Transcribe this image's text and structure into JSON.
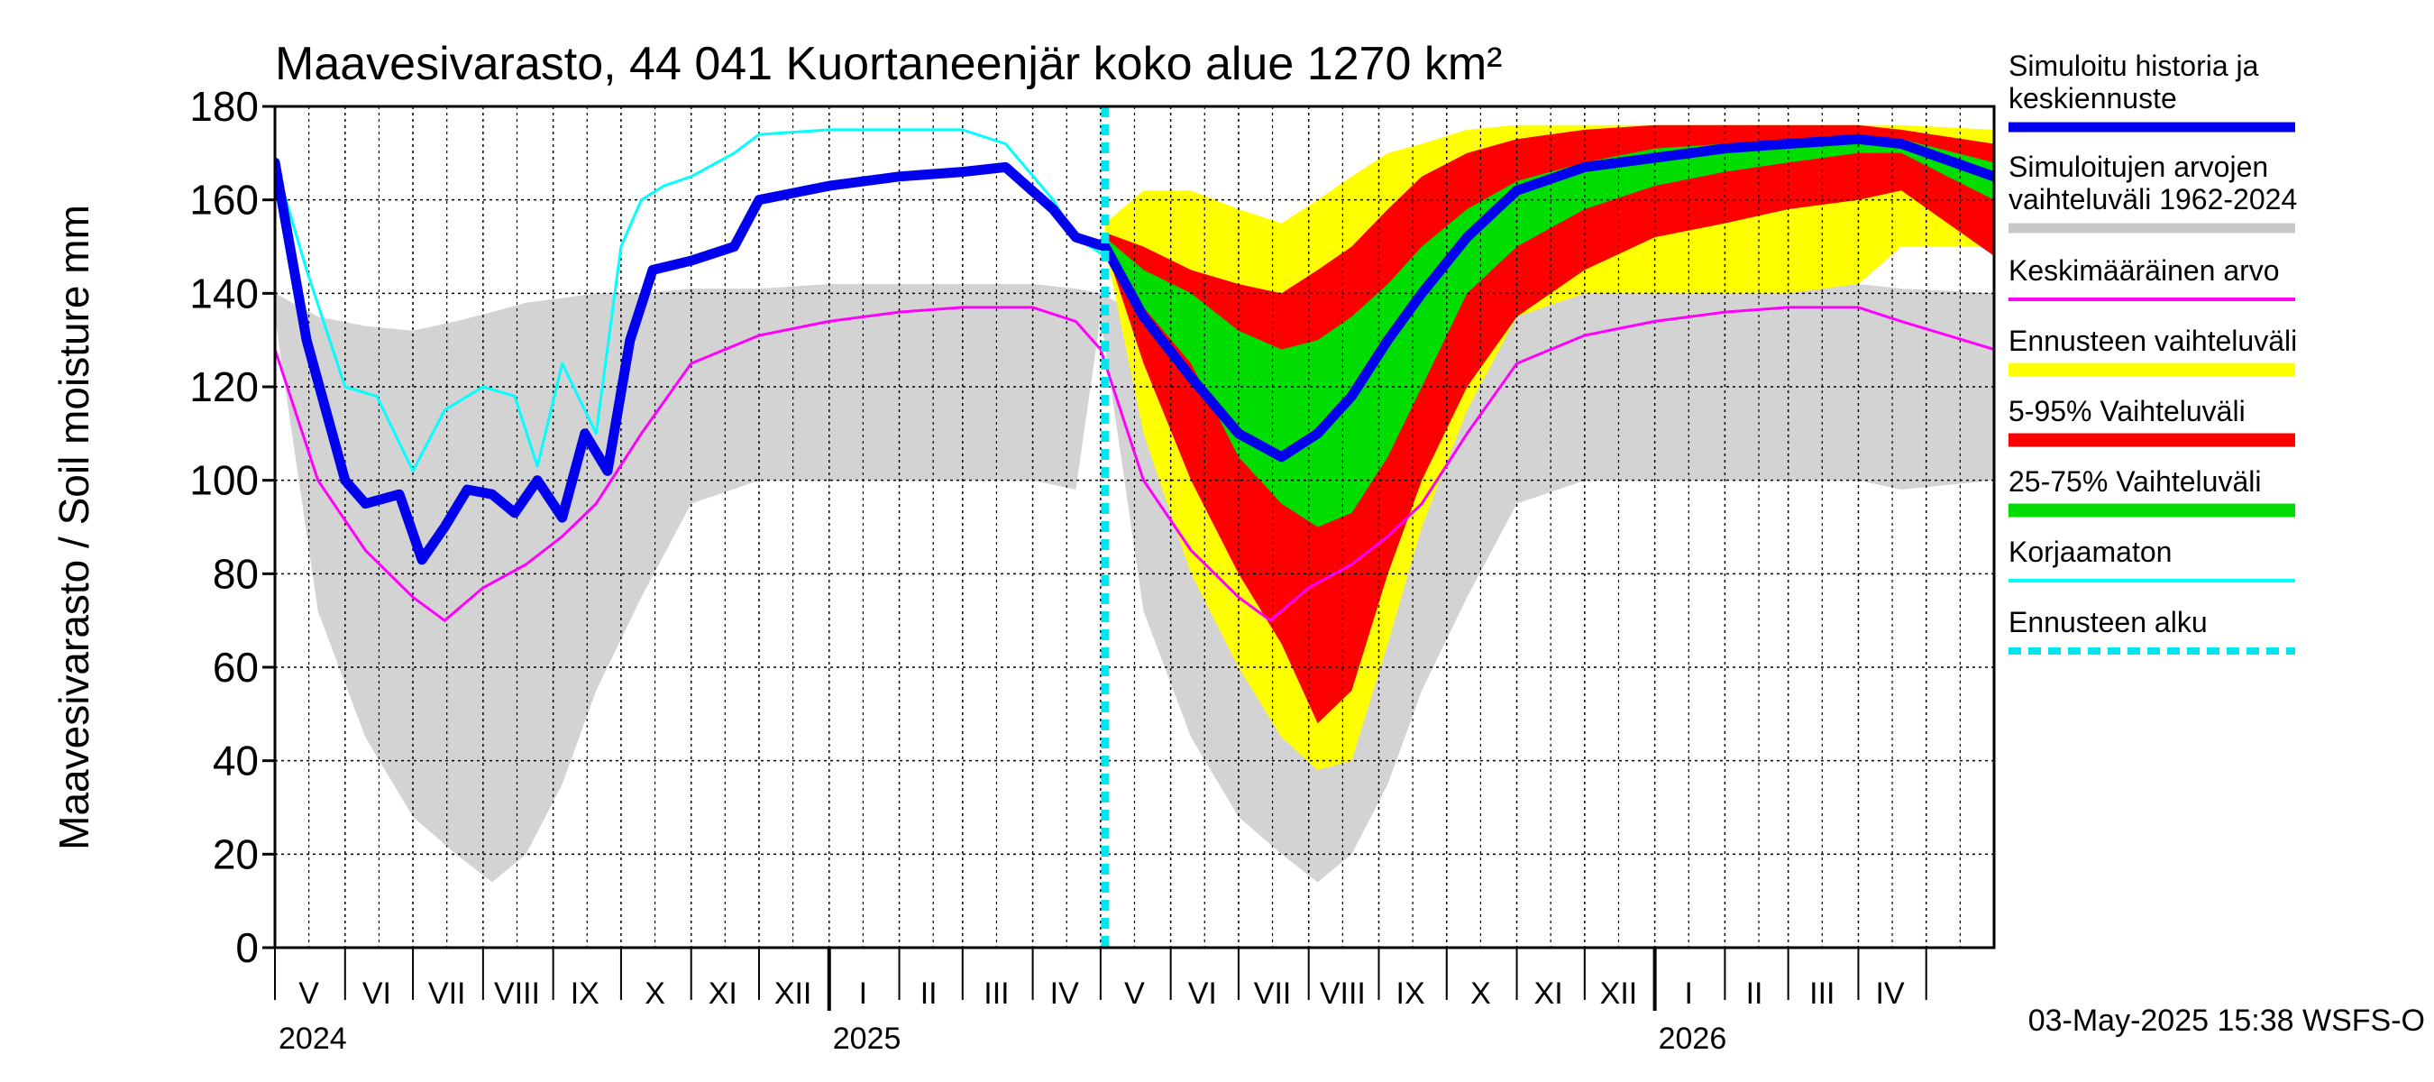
{
  "chart_data": {
    "type": "area",
    "title": "Maavesivarasto, 44 041 Kuortaneenjär koko alue 1270 km²",
    "ylabel": "Maavesivarasto / Soil moisture   mm",
    "ylim": [
      0,
      180
    ],
    "yticks": [
      0,
      20,
      40,
      60,
      80,
      100,
      120,
      140,
      160,
      180
    ],
    "grid": true,
    "legend_placement": "right",
    "xlim": [
      "2024-05-01",
      "2026-05-31"
    ],
    "forecast_start": "2025-05-03",
    "timestamp": "03-May-2025 15:38 WSFS-O",
    "month_labels": [
      {
        "date": "2024-05-16",
        "label": "V"
      },
      {
        "date": "2024-06-15",
        "label": "VI"
      },
      {
        "date": "2024-07-16",
        "label": "VII"
      },
      {
        "date": "2024-08-16",
        "label": "VIII"
      },
      {
        "date": "2024-09-15",
        "label": "IX"
      },
      {
        "date": "2024-10-16",
        "label": "X"
      },
      {
        "date": "2024-11-15",
        "label": "XI"
      },
      {
        "date": "2024-12-16",
        "label": "XII"
      },
      {
        "date": "2025-01-16",
        "label": "I"
      },
      {
        "date": "2025-02-14",
        "label": "II"
      },
      {
        "date": "2025-03-16",
        "label": "III"
      },
      {
        "date": "2025-04-15",
        "label": "IV"
      },
      {
        "date": "2025-05-16",
        "label": "V"
      },
      {
        "date": "2025-06-15",
        "label": "VI"
      },
      {
        "date": "2025-07-16",
        "label": "VII"
      },
      {
        "date": "2025-08-16",
        "label": "VIII"
      },
      {
        "date": "2025-09-15",
        "label": "IX"
      },
      {
        "date": "2025-10-16",
        "label": "X"
      },
      {
        "date": "2025-11-15",
        "label": "XI"
      },
      {
        "date": "2025-12-16",
        "label": "XII"
      },
      {
        "date": "2026-01-16",
        "label": "I"
      },
      {
        "date": "2026-02-14",
        "label": "II"
      },
      {
        "date": "2026-03-16",
        "label": "III"
      },
      {
        "date": "2026-04-15",
        "label": "IV"
      }
    ],
    "year_labels": [
      {
        "date": "2024-05-01",
        "label": "2024"
      },
      {
        "date": "2025-01-01",
        "label": "2025"
      },
      {
        "date": "2026-01-01",
        "label": "2026"
      }
    ],
    "legend": [
      {
        "lines": [
          "Simuloitu historia ja",
          "keskiennuste"
        ],
        "color": "#0000ee"
      },
      {
        "lines": [
          "Simuloitujen arvojen",
          "vaihteluväli 1962-2024"
        ],
        "color": "#c8c8c8"
      },
      {
        "lines": [
          "Keskimääräinen arvo"
        ],
        "color": "#ff00ff"
      },
      {
        "lines": [
          "Ennusteen vaihteluväli"
        ],
        "color": "#ffff00"
      },
      {
        "lines": [
          "5-95% Vaihteluväli"
        ],
        "color": "#ff0000"
      },
      {
        "lines": [
          "25-75% Vaihteluväli"
        ],
        "color": "#00dd00"
      },
      {
        "lines": [
          "Korjaamaton"
        ],
        "color": "#00ffff"
      },
      {
        "lines": [
          "Ennusteen alku"
        ],
        "color": "#00e5ee"
      }
    ],
    "series": [
      {
        "name": "Simuloitujen arvojen vaihteluväli 1962-2024",
        "kind": "band",
        "color": "#d3d3d3",
        "x": [
          "2024-05-01",
          "2024-05-20",
          "2024-06-10",
          "2024-07-01",
          "2024-07-20",
          "2024-08-05",
          "2024-08-20",
          "2024-09-05",
          "2024-09-20",
          "2024-10-10",
          "2024-11-01",
          "2024-12-01",
          "2025-01-01",
          "2025-02-01",
          "2025-03-01",
          "2025-04-01",
          "2025-04-20",
          "2025-05-01",
          "2025-05-20",
          "2025-06-10",
          "2025-07-01",
          "2025-07-20",
          "2025-08-05",
          "2025-08-20",
          "2025-09-05",
          "2025-09-20",
          "2025-10-10",
          "2025-11-01",
          "2025-12-01",
          "2026-01-01",
          "2026-02-01",
          "2026-03-01",
          "2026-04-01",
          "2026-04-20",
          "2026-05-31"
        ],
        "low": [
          135,
          72,
          45,
          28,
          20,
          14,
          20,
          35,
          55,
          75,
          95,
          100,
          100,
          100,
          100,
          100,
          98,
          135,
          72,
          45,
          28,
          20,
          14,
          20,
          35,
          55,
          75,
          95,
          100,
          100,
          100,
          100,
          100,
          98,
          100
        ],
        "high": [
          140,
          135,
          133,
          132,
          134,
          136,
          138,
          139,
          140,
          140,
          141,
          141,
          142,
          142,
          142,
          142,
          141,
          140,
          135,
          133,
          132,
          134,
          136,
          138,
          139,
          140,
          140,
          141,
          141,
          142,
          142,
          142,
          142,
          141,
          140
        ]
      },
      {
        "name": "Ennusteen vaihteluväli",
        "kind": "band",
        "color": "#ffff00",
        "x": [
          "2025-05-03",
          "2025-05-20",
          "2025-06-10",
          "2025-07-01",
          "2025-07-20",
          "2025-08-05",
          "2025-08-20",
          "2025-09-05",
          "2025-09-20",
          "2025-10-10",
          "2025-11-01",
          "2025-12-01",
          "2026-01-01",
          "2026-02-01",
          "2026-03-01",
          "2026-04-01",
          "2026-04-20",
          "2026-05-31"
        ],
        "low": [
          150,
          110,
          80,
          60,
          45,
          38,
          40,
          65,
          90,
          115,
          135,
          140,
          140,
          140,
          140,
          142,
          150,
          150
        ],
        "high": [
          155,
          162,
          162,
          158,
          155,
          160,
          165,
          170,
          172,
          175,
          176,
          176,
          176,
          176,
          176,
          176,
          176,
          175
        ]
      },
      {
        "name": "5-95% Vaihteluväli",
        "kind": "band",
        "color": "#ff0000",
        "x": [
          "2025-05-03",
          "2025-05-20",
          "2025-06-10",
          "2025-07-01",
          "2025-07-20",
          "2025-08-05",
          "2025-08-20",
          "2025-09-05",
          "2025-09-20",
          "2025-10-10",
          "2025-11-01",
          "2025-12-01",
          "2026-01-01",
          "2026-02-01",
          "2026-03-01",
          "2026-04-01",
          "2026-04-20",
          "2026-05-31"
        ],
        "low": [
          150,
          125,
          100,
          80,
          65,
          48,
          55,
          80,
          100,
          120,
          135,
          145,
          152,
          155,
          158,
          160,
          162,
          148
        ],
        "high": [
          153,
          150,
          145,
          142,
          140,
          145,
          150,
          158,
          165,
          170,
          173,
          175,
          176,
          176,
          176,
          176,
          175,
          172
        ]
      },
      {
        "name": "25-75% Vaihteluväli",
        "kind": "band",
        "color": "#00dd00",
        "x": [
          "2025-05-03",
          "2025-05-20",
          "2025-06-10",
          "2025-07-01",
          "2025-07-20",
          "2025-08-05",
          "2025-08-20",
          "2025-09-05",
          "2025-09-20",
          "2025-10-10",
          "2025-11-01",
          "2025-12-01",
          "2026-01-01",
          "2026-02-01",
          "2026-03-01",
          "2026-04-01",
          "2026-04-20",
          "2026-05-31"
        ],
        "low": [
          150,
          137,
          125,
          105,
          95,
          90,
          93,
          105,
          120,
          140,
          150,
          158,
          163,
          166,
          168,
          170,
          170,
          160
        ],
        "high": [
          152,
          145,
          140,
          132,
          128,
          130,
          135,
          142,
          150,
          158,
          164,
          168,
          171,
          172,
          173,
          174,
          173,
          168
        ]
      },
      {
        "name": "Keskimääräinen arvo",
        "kind": "line",
        "color": "#ff00ff",
        "width": 3,
        "x": [
          "2024-05-01",
          "2024-05-20",
          "2024-06-10",
          "2024-07-01",
          "2024-07-15",
          "2024-08-01",
          "2024-08-20",
          "2024-09-05",
          "2024-09-20",
          "2024-10-10",
          "2024-11-01",
          "2024-12-01",
          "2025-01-01",
          "2025-02-01",
          "2025-03-01",
          "2025-04-01",
          "2025-04-20",
          "2025-05-01",
          "2025-05-20",
          "2025-06-10",
          "2025-07-01",
          "2025-07-15",
          "2025-08-01",
          "2025-08-20",
          "2025-09-05",
          "2025-09-20",
          "2025-10-10",
          "2025-11-01",
          "2025-12-01",
          "2026-01-01",
          "2026-02-01",
          "2026-03-01",
          "2026-04-01",
          "2026-04-20",
          "2026-05-31"
        ],
        "values": [
          128,
          100,
          85,
          75,
          70,
          77,
          82,
          88,
          95,
          110,
          125,
          131,
          134,
          136,
          137,
          137,
          134,
          128,
          100,
          85,
          75,
          70,
          77,
          82,
          88,
          95,
          110,
          125,
          131,
          134,
          136,
          137,
          137,
          134,
          128
        ]
      },
      {
        "name": "Korjaamaton",
        "kind": "line",
        "color": "#00ffff",
        "width": 3,
        "x": [
          "2024-05-01",
          "2024-05-15",
          "2024-06-01",
          "2024-06-15",
          "2024-07-01",
          "2024-07-15",
          "2024-08-01",
          "2024-08-15",
          "2024-08-25",
          "2024-09-05",
          "2024-09-20",
          "2024-10-01",
          "2024-10-10",
          "2024-10-20",
          "2024-11-01",
          "2024-11-20",
          "2024-12-01",
          "2025-01-01",
          "2025-02-01",
          "2025-03-01",
          "2025-03-20",
          "2025-04-10",
          "2025-04-20",
          "2025-05-03"
        ],
        "values": [
          168,
          145,
          120,
          118,
          102,
          115,
          120,
          118,
          103,
          125,
          110,
          150,
          160,
          163,
          165,
          170,
          174,
          175,
          175,
          175,
          172,
          160,
          152,
          148
        ]
      },
      {
        "name": "Simuloitu historia ja keskiennuste",
        "kind": "line",
        "color": "#0000ee",
        "width": 11,
        "x": [
          "2024-05-01",
          "2024-05-15",
          "2024-06-01",
          "2024-06-10",
          "2024-06-25",
          "2024-07-05",
          "2024-07-15",
          "2024-07-25",
          "2024-08-05",
          "2024-08-15",
          "2024-08-25",
          "2024-09-05",
          "2024-09-15",
          "2024-09-25",
          "2024-10-05",
          "2024-10-15",
          "2024-11-01",
          "2024-11-20",
          "2024-12-01",
          "2025-01-01",
          "2025-02-01",
          "2025-03-01",
          "2025-03-20",
          "2025-04-10",
          "2025-04-20",
          "2025-05-03",
          "2025-05-20",
          "2025-06-10",
          "2025-07-01",
          "2025-07-20",
          "2025-08-05",
          "2025-08-20",
          "2025-09-05",
          "2025-09-20",
          "2025-10-10",
          "2025-11-01",
          "2025-12-01",
          "2026-01-01",
          "2026-02-01",
          "2026-03-01",
          "2026-04-01",
          "2026-04-20",
          "2026-05-31"
        ],
        "values": [
          168,
          130,
          100,
          95,
          97,
          83,
          90,
          98,
          97,
          93,
          100,
          92,
          110,
          102,
          130,
          145,
          147,
          150,
          160,
          163,
          165,
          166,
          167,
          158,
          152,
          150,
          135,
          122,
          110,
          105,
          110,
          118,
          130,
          140,
          152,
          162,
          167,
          169,
          171,
          172,
          173,
          172,
          165
        ]
      }
    ]
  }
}
